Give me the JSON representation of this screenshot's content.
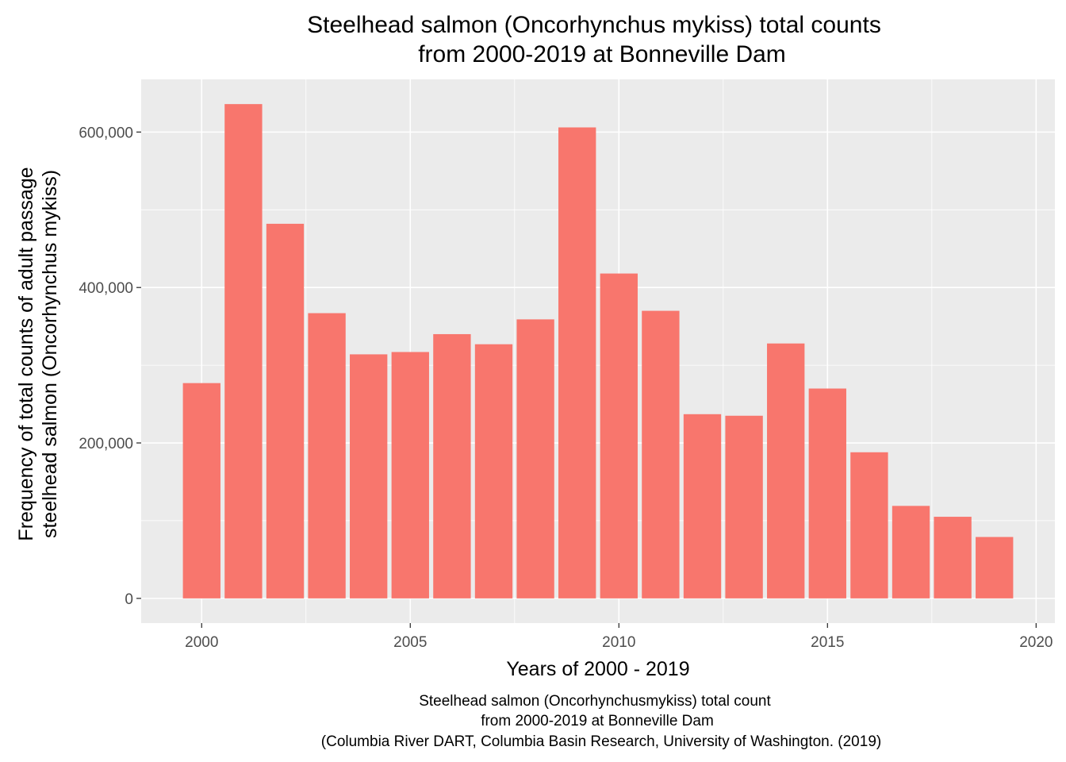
{
  "chart_data": {
    "type": "bar",
    "title_lines": [
      "Steelhead salmon (Oncorhynchus mykiss) total counts",
      "from 2000-2019 at Bonneville Dam"
    ],
    "xlabel": "Years of 2000 - 2019",
    "ylabel_lines": [
      "Frequency of total counts of adult passage",
      "steelhead salmon (Oncorhynchus mykiss)"
    ],
    "caption_lines": [
      "Steelhead salmon (Oncorhynchusmykiss) total count",
      "from 2000-2019 at Bonneville Dam",
      "(Columbia River DART, Columbia Basin Research, University of Washington. (2019)"
    ],
    "x": [
      2000,
      2001,
      2002,
      2003,
      2004,
      2005,
      2006,
      2007,
      2008,
      2009,
      2010,
      2011,
      2012,
      2013,
      2014,
      2015,
      2016,
      2017,
      2018,
      2019
    ],
    "values": [
      277000,
      636000,
      482000,
      367000,
      314000,
      317000,
      340000,
      327000,
      359000,
      606000,
      418000,
      370000,
      237000,
      235000,
      328000,
      270000,
      188000,
      119000,
      105000,
      79000
    ],
    "xlim": [
      1998.55,
      2020.45
    ],
    "ylim": [
      -31800,
      667800
    ],
    "x_ticks": [
      2000,
      2005,
      2010,
      2015,
      2020
    ],
    "x_tick_labels": [
      "2000",
      "2005",
      "2010",
      "2015",
      "2020"
    ],
    "y_ticks": [
      0,
      200000,
      400000,
      600000
    ],
    "y_tick_labels": [
      "0",
      "200,000",
      "400,000",
      "600,000"
    ],
    "grid": true,
    "legend": "none",
    "colors": {
      "bar": "#F8766D",
      "panel": "#EBEBEB",
      "grid": "#FFFFFF",
      "tick_text": "#4D4D4D",
      "text": "#000000"
    }
  }
}
